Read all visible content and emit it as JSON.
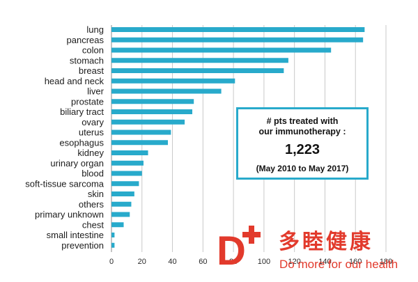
{
  "chart_data": {
    "type": "bar",
    "orientation": "horizontal",
    "title": "",
    "xlabel": "",
    "ylabel": "",
    "categories": [
      "lung",
      "pancreas",
      "colon",
      "stomach",
      "breast",
      "head and neck",
      "liver",
      "prostate",
      "biliary tract",
      "ovary",
      "uterus",
      "esophagus",
      "kidney",
      "urinary organ",
      "blood",
      "soft-tissue sarcoma",
      "skin",
      "others",
      "primary unknown",
      "chest",
      "small intestine",
      "prevention"
    ],
    "values": [
      166,
      165,
      144,
      116,
      113,
      81,
      72,
      54,
      53,
      48,
      39,
      37,
      24,
      21,
      20,
      18,
      15,
      13,
      12,
      8,
      2,
      2
    ],
    "xlim": [
      0,
      180
    ],
    "xticks": [
      0,
      20,
      40,
      60,
      80,
      100,
      120,
      140,
      160,
      180
    ],
    "xtick_labels": [
      "0",
      "20",
      "40",
      "60",
      "80",
      "100",
      "120",
      "140",
      "160",
      "180"
    ],
    "grid": "vertical",
    "bar_color": "#28aacb"
  },
  "info_box": {
    "line1": "# pts treated with",
    "line2": "our immunotherapy  :",
    "count": "1,223",
    "period": "(May 2010 to May 2017)",
    "border_color": "#28aacb"
  },
  "logo": {
    "mark": "D",
    "chinese": "多睦健康",
    "tagline": "Do more for our health",
    "color": "#e23a2c"
  }
}
